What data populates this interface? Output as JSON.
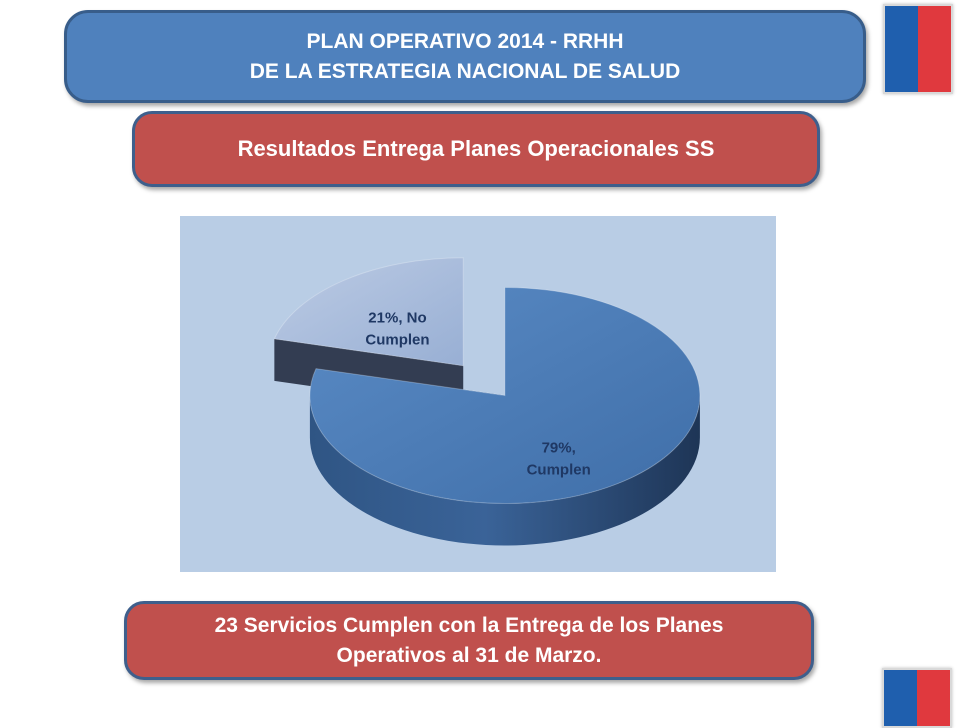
{
  "header": {
    "title_line1": "PLAN OPERATIVO 2014 - RRHH",
    "title_line2": "DE LA ESTRATEGIA NACIONAL DE SALUD"
  },
  "subtitle": "Resultados Entrega Planes Operacionales SS",
  "footer": {
    "line1": "23 Servicios Cumplen con la Entrega de los Planes",
    "line2": "Operativos al 31 de Marzo."
  },
  "colors": {
    "title_banner": "#4f81bd",
    "red_banner": "#c0504d",
    "chart_background": "#b9cde5",
    "slice_cumplen": "#4a7ab5",
    "slice_no_cumplen": "#a9bcdc"
  },
  "chart_data": {
    "type": "pie",
    "style": "3d-exploded",
    "title": "",
    "slices": [
      {
        "name": "Cumplen",
        "percent": 79,
        "label_line1": "79%,",
        "label_line2": "Cumplen"
      },
      {
        "name": "No Cumplen",
        "percent": 21,
        "label_line1": "21%, No",
        "label_line2": "Cumplen"
      }
    ]
  }
}
